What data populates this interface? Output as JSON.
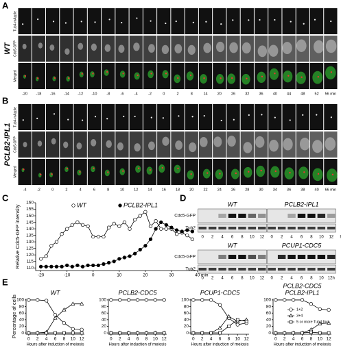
{
  "panel_labels": [
    "A",
    "B",
    "C",
    "D",
    "E"
  ],
  "panel_a": {
    "genotype": "WT",
    "rows": [
      "Tub4-mApple",
      "Cdc5-GFP",
      "Merged"
    ],
    "times": [
      "-20",
      "-18",
      "-16",
      "-14",
      "-12",
      "-10",
      "-8",
      "-6",
      "-4",
      "-2",
      "0",
      "2",
      "8",
      "14",
      "20",
      "26",
      "32",
      "36",
      "40",
      "44",
      "48",
      "52",
      "56 min"
    ]
  },
  "panel_b": {
    "genotype": "PCLB2-IPL1",
    "rows": [
      "Tub4-mApple",
      "Cdc5-GFP",
      "Merged"
    ],
    "times": [
      "-4",
      "-2",
      "0",
      "2",
      "4",
      "6",
      "8",
      "10",
      "12",
      "14",
      "16",
      "18",
      "20",
      "22",
      "24",
      "26",
      "28",
      "30",
      "34",
      "36",
      "38",
      "40",
      "66 min"
    ]
  },
  "panel_d": {
    "rows": [
      "Cdc5-GFP",
      "Tub2"
    ],
    "top": {
      "strains": [
        "WT",
        "PCLB2-IPL1"
      ],
      "lanes": [
        "0",
        "2",
        "4",
        "6",
        "8",
        "10",
        "12",
        "0",
        "2",
        "4",
        "6",
        "8",
        "10",
        "12",
        "h"
      ]
    },
    "bottom": {
      "strains": [
        "WT",
        "PCUP1-CDC5"
      ],
      "lanes": [
        "0",
        "2",
        "4",
        "6",
        "8",
        "10",
        "12",
        "0",
        "2",
        "4",
        "6",
        "8",
        "10",
        "12h"
      ]
    }
  },
  "chart_data": [
    {
      "type": "line",
      "ylabel": "Relative Cdc5-GFP intensity",
      "legend": "top",
      "xlim": [
        -22,
        40
      ],
      "ylim": [
        108,
        160
      ],
      "xticks": [
        -20,
        -10,
        0,
        10,
        20,
        30,
        {
          "value": 40,
          "label": "40 min"
        }
      ],
      "yticks": [
        110,
        115,
        120,
        125,
        130,
        135,
        140,
        145,
        150,
        155,
        160
      ],
      "x": [
        -20,
        -18,
        -16,
        -14,
        -12,
        -10,
        -8,
        -6,
        -4,
        -2,
        0,
        2,
        4,
        6,
        8,
        10,
        12,
        14,
        16,
        18,
        20,
        22,
        24,
        26,
        28,
        30,
        32,
        34,
        36,
        38
      ],
      "series": [
        {
          "name": "WT",
          "marker": "open-circle",
          "color": "#000000",
          "values": [
            117,
            119,
            127,
            130,
            136,
            140,
            143,
            145,
            143,
            142,
            134,
            134,
            134,
            141,
            144,
            142,
            145,
            140,
            147,
            150,
            153,
            142,
            146,
            140,
            140,
            140,
            136,
            137,
            135,
            132
          ]
        },
        {
          "name": "PCLB2-IPL1",
          "marker": "filled-circle",
          "color": "#000000",
          "values": [
            111,
            111,
            111,
            111,
            111,
            112,
            111,
            112,
            111,
            112,
            112,
            112,
            113,
            114,
            115,
            117,
            118,
            119,
            121,
            124,
            127,
            132,
            140,
            145,
            143,
            141,
            139,
            138,
            139,
            138
          ]
        }
      ]
    },
    {
      "type": "line",
      "title": [
        "WT"
      ],
      "ylabel": "Percentage of cells",
      "xlabel": "Hours after induction of meiosis",
      "xlim": [
        -0.6,
        12.6
      ],
      "ylim": [
        -4,
        104
      ],
      "xticks": [
        0,
        2,
        4,
        6,
        8,
        10,
        12
      ],
      "yticks": [
        0,
        20,
        40,
        60,
        80,
        100
      ],
      "x": [
        0,
        2,
        4,
        6,
        8,
        10,
        12
      ],
      "series": [
        {
          "marker": "open-circle",
          "color": "#000000",
          "values": [
            100,
            100,
            98,
            55,
            30,
            12,
            10
          ]
        },
        {
          "marker": "open-triangle",
          "color": "#000000",
          "values": [
            0,
            0,
            2,
            45,
            70,
            88,
            88
          ]
        },
        {
          "marker": "open-square",
          "color": "#000000",
          "values": [
            0,
            0,
            0,
            0,
            0,
            0,
            0
          ]
        }
      ]
    },
    {
      "type": "line",
      "title": [
        "PCLB2-CDC5"
      ],
      "xlabel": "Hours after induction of meiosis",
      "xlim": [
        -0.6,
        12.6
      ],
      "ylim": [
        -4,
        104
      ],
      "xticks": [
        0,
        2,
        4,
        6,
        8,
        10,
        12
      ],
      "yticks": [
        0,
        20,
        40,
        60,
        80,
        100
      ],
      "x": [
        0,
        2,
        4,
        6,
        8,
        10,
        12
      ],
      "series": [
        {
          "marker": "open-circle",
          "color": "#000000",
          "values": [
            100,
            100,
            100,
            100,
            100,
            100,
            100
          ]
        },
        {
          "marker": "open-triangle",
          "color": "#000000",
          "values": [
            0,
            0,
            0,
            0,
            0,
            0,
            0
          ]
        },
        {
          "marker": "open-square",
          "color": "#000000",
          "values": [
            0,
            0,
            0,
            0,
            0,
            0,
            0
          ]
        }
      ]
    },
    {
      "type": "line",
      "title": [
        "PCUP1-CDC5"
      ],
      "xlabel": "Hours after induction of meiosis",
      "xlim": [
        -0.6,
        12.6
      ],
      "ylim": [
        -4,
        104
      ],
      "xticks": [
        0,
        2,
        4,
        6,
        8,
        10,
        12
      ],
      "yticks": [
        0,
        20,
        40,
        60,
        80,
        100
      ],
      "x": [
        0,
        2,
        4,
        6,
        8,
        10,
        12
      ],
      "series": [
        {
          "marker": "open-circle",
          "color": "#000000",
          "values": [
            100,
            100,
            100,
            85,
            45,
            25,
            30
          ]
        },
        {
          "marker": "open-triangle",
          "color": "#000000",
          "values": [
            0,
            0,
            0,
            15,
            50,
            35,
            40
          ]
        },
        {
          "marker": "open-square",
          "color": "#000000",
          "values": [
            0,
            0,
            0,
            0,
            20,
            40,
            35
          ]
        }
      ]
    },
    {
      "type": "line",
      "title": [
        "PCLB2-CDC5",
        "PCLB2-IPL1"
      ],
      "xlabel": "Hours after induction of meiosis",
      "legend": "right",
      "xlim": [
        -0.6,
        12.6
      ],
      "ylim": [
        -4,
        104
      ],
      "xticks": [
        0,
        2,
        4,
        6,
        8,
        10,
        12
      ],
      "yticks": [
        0,
        20,
        40,
        60,
        80,
        100
      ],
      "x": [
        0,
        2,
        4,
        6,
        8,
        10,
        12
      ],
      "series": [
        {
          "name": "1+2",
          "marker": "open-circle",
          "color": "#000000",
          "values": [
            100,
            100,
            100,
            100,
            88,
            72,
            70
          ]
        },
        {
          "name": "3+4",
          "marker": "open-triangle",
          "color": "#000000",
          "values": [
            0,
            0,
            0,
            0,
            10,
            28,
            30
          ]
        },
        {
          "name": "5 or more Tub4 foci",
          "marker": "open-square",
          "color": "#000000",
          "values": [
            0,
            0,
            0,
            0,
            2,
            0,
            0
          ]
        }
      ]
    }
  ]
}
